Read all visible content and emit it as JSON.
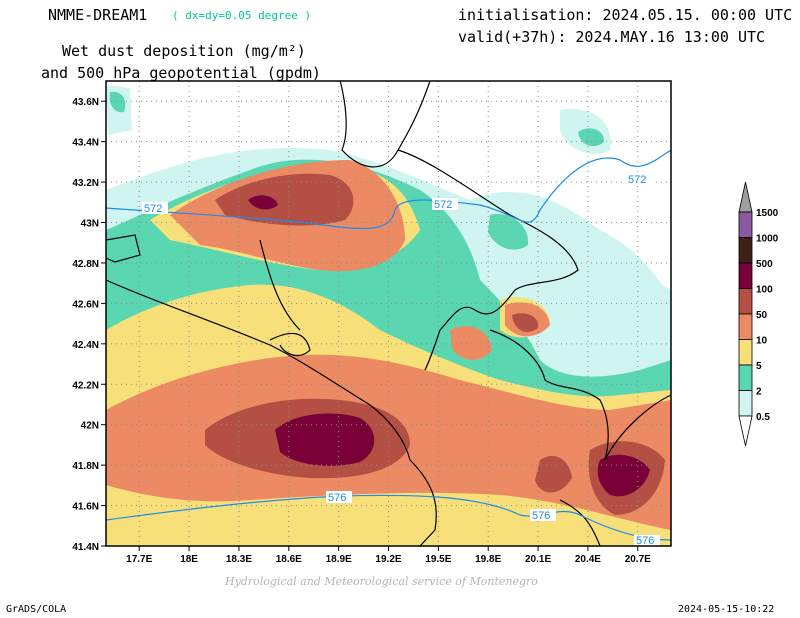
{
  "header": {
    "model": "NMME-DREAM1",
    "resolution": "( dx=dy=0.05 degree )",
    "init": "initialisation: 2024.05.15. 00:00 UTC",
    "valid": "valid(+37h): 2024.MAY.16 13:00 UTC",
    "title_line1": "Wet dust deposition (mg/m²)",
    "title_line2": "and 500 hPa geopotential (gpdm)"
  },
  "map": {
    "lat_ticks": [
      "43.6N",
      "43.4N",
      "43.2N",
      "43N",
      "42.8N",
      "42.6N",
      "42.4N",
      "42.2N",
      "42N",
      "41.8N",
      "41.6N",
      "41.4N"
    ],
    "lon_ticks": [
      "17.7E",
      "18E",
      "18.3E",
      "18.6E",
      "18.9E",
      "19.2E",
      "19.5E",
      "19.8E",
      "20.1E",
      "20.4E",
      "20.7E"
    ],
    "lat_range": [
      41.4,
      43.7
    ],
    "lon_range": [
      17.5,
      20.9
    ],
    "contours": [
      {
        "label": "572"
      },
      {
        "label": "572"
      },
      {
        "label": "572"
      },
      {
        "label": "576"
      },
      {
        "label": "576"
      },
      {
        "label": "576"
      }
    ]
  },
  "colorbar": {
    "labels": [
      "1500",
      "1000",
      "500",
      "100",
      "50",
      "10",
      "5",
      "2",
      "0.5"
    ],
    "colors": [
      "#9e9e9e",
      "#8a5aa3",
      "#3e2118",
      "#7a0038",
      "#b34f43",
      "#eb8a63",
      "#f7e07a",
      "#5ad7b0",
      "#d0f4ef"
    ]
  },
  "footer": {
    "credit": "Hydrological and Meteorological service of Montenegro",
    "left": "GrADS/COLA",
    "right": "2024-05-15-10:22"
  }
}
